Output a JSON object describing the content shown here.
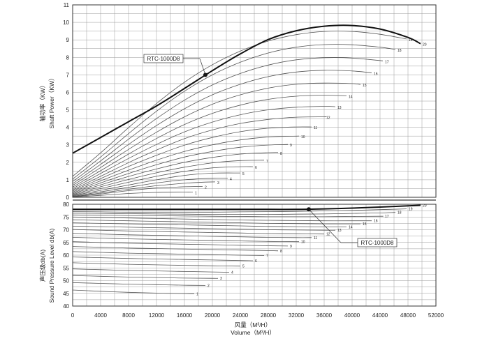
{
  "chart_data": [
    {
      "type": "line",
      "ylabel_cn": "轴功率（KW）",
      "ylabel": "Shaft Power（KW）",
      "ylim": [
        0,
        11
      ],
      "yticks": [
        "0",
        "1",
        "2",
        "3",
        "4",
        "5",
        "6",
        "7",
        "8",
        "9",
        "10",
        "11"
      ],
      "grid": true,
      "highlight": {
        "name": "RTC-1000D8",
        "marker_x": 19000,
        "marker_y": 7.0
      },
      "series": [
        {
          "name": "1",
          "x": [
            0,
            4000,
            8000,
            12000,
            16000,
            17200
          ],
          "y": [
            0.02,
            0.11,
            0.22,
            0.28,
            0.3,
            0.3
          ]
        },
        {
          "name": "2",
          "x": [
            0,
            4000,
            8000,
            12000,
            16000,
            18600
          ],
          "y": [
            0.03,
            0.19,
            0.38,
            0.53,
            0.6,
            0.62
          ]
        },
        {
          "name": "3",
          "x": [
            0,
            4000,
            8000,
            12000,
            16000,
            19000,
            20400
          ],
          "y": [
            0.04,
            0.24,
            0.46,
            0.66,
            0.8,
            0.87,
            0.88
          ]
        },
        {
          "name": "4",
          "x": [
            0,
            4000,
            8000,
            12000,
            16000,
            20000,
            22200
          ],
          "y": [
            0.06,
            0.31,
            0.57,
            0.82,
            1.0,
            1.09,
            1.1
          ]
        },
        {
          "name": "5",
          "x": [
            0,
            4000,
            8000,
            12000,
            16000,
            20000,
            24000
          ],
          "y": [
            0.09,
            0.4,
            0.7,
            1.0,
            1.25,
            1.38,
            1.39
          ]
        },
        {
          "name": "6",
          "x": [
            0,
            4000,
            8000,
            12000,
            16000,
            20000,
            24000,
            25800
          ],
          "y": [
            0.12,
            0.5,
            0.86,
            1.2,
            1.48,
            1.68,
            1.75,
            1.75
          ]
        },
        {
          "name": "7",
          "x": [
            0,
            4000,
            8000,
            12000,
            16000,
            20000,
            24000,
            27400
          ],
          "y": [
            0.16,
            0.6,
            1.02,
            1.4,
            1.72,
            1.97,
            2.1,
            2.12
          ]
        },
        {
          "name": "8",
          "x": [
            0,
            4000,
            8000,
            12000,
            16000,
            20000,
            24000,
            28000,
            29400
          ],
          "y": [
            0.2,
            0.71,
            1.19,
            1.62,
            2.0,
            2.28,
            2.47,
            2.55,
            2.56
          ]
        },
        {
          "name": "9",
          "x": [
            0,
            4000,
            8000,
            12000,
            16000,
            20000,
            24000,
            28000,
            30800
          ],
          "y": [
            0.25,
            0.82,
            1.36,
            1.86,
            2.3,
            2.62,
            2.86,
            2.99,
            3.02
          ]
        },
        {
          "name": "10",
          "x": [
            0,
            4000,
            8000,
            12000,
            16000,
            20000,
            24000,
            28000,
            32400
          ],
          "y": [
            0.3,
            0.94,
            1.55,
            2.12,
            2.62,
            3.0,
            3.28,
            3.45,
            3.5
          ]
        },
        {
          "name": "11",
          "x": [
            0,
            4000,
            8000,
            12000,
            16000,
            20000,
            24000,
            28000,
            32000,
            34200
          ],
          "y": [
            0.36,
            1.07,
            1.76,
            2.4,
            2.98,
            3.42,
            3.75,
            3.95,
            4.02,
            4.02
          ]
        },
        {
          "name": "12",
          "x": [
            0,
            4000,
            8000,
            12000,
            16000,
            20000,
            24000,
            28000,
            32000,
            36000,
            36000
          ],
          "y": [
            0.42,
            1.2,
            1.98,
            2.7,
            3.35,
            3.85,
            4.22,
            4.45,
            4.58,
            4.6,
            4.6
          ]
        },
        {
          "name": "13",
          "x": [
            0,
            4000,
            8000,
            12000,
            16000,
            20000,
            24000,
            28000,
            32000,
            36000,
            37600
          ],
          "y": [
            0.5,
            1.36,
            2.22,
            3.02,
            3.74,
            4.3,
            4.72,
            5.0,
            5.15,
            5.2,
            5.18
          ]
        },
        {
          "name": "14",
          "x": [
            0,
            4000,
            8000,
            12000,
            16000,
            20000,
            24000,
            28000,
            32000,
            36000,
            39200
          ],
          "y": [
            0.58,
            1.52,
            2.47,
            3.36,
            4.16,
            4.8,
            5.27,
            5.6,
            5.78,
            5.84,
            5.8
          ]
        },
        {
          "name": "15",
          "x": [
            0,
            4000,
            8000,
            12000,
            16000,
            20000,
            24000,
            28000,
            32000,
            36000,
            40000,
            41200
          ],
          "y": [
            0.68,
            1.7,
            2.74,
            3.72,
            4.6,
            5.32,
            5.86,
            6.24,
            6.46,
            6.53,
            6.5,
            6.45
          ]
        },
        {
          "name": "16",
          "x": [
            0,
            4000,
            8000,
            12000,
            16000,
            20000,
            24000,
            28000,
            32000,
            36000,
            40000,
            42800
          ],
          "y": [
            0.78,
            1.88,
            3.02,
            4.1,
            5.06,
            5.86,
            6.46,
            6.9,
            7.16,
            7.26,
            7.22,
            7.12
          ]
        },
        {
          "name": "17",
          "x": [
            0,
            4000,
            8000,
            12000,
            16000,
            20000,
            24000,
            28000,
            32000,
            36000,
            40000,
            44400
          ],
          "y": [
            0.9,
            2.08,
            3.32,
            4.5,
            5.55,
            6.42,
            7.08,
            7.56,
            7.86,
            7.98,
            7.96,
            7.8
          ]
        },
        {
          "name": "18",
          "x": [
            0,
            4000,
            8000,
            12000,
            16000,
            20000,
            24000,
            28000,
            32000,
            36000,
            40000,
            44000,
            46200
          ],
          "y": [
            1.04,
            2.3,
            3.64,
            4.92,
            6.06,
            7.0,
            7.72,
            8.25,
            8.58,
            8.73,
            8.72,
            8.58,
            8.45
          ]
        },
        {
          "name": "19",
          "x": [
            0,
            4000,
            8000,
            12000,
            16000,
            20000,
            24000,
            28000,
            32000,
            36000,
            40000,
            44000,
            47800
          ],
          "y": [
            1.2,
            2.54,
            3.98,
            5.36,
            6.58,
            7.58,
            8.36,
            8.93,
            9.3,
            9.48,
            9.48,
            9.32,
            9.05
          ]
        },
        {
          "name": "20",
          "x": [
            0,
            4000,
            8000,
            12000,
            16000,
            20000,
            24000,
            28000,
            32000,
            36000,
            40000,
            44000,
            48000,
            49800
          ],
          "y": [
            2.52,
            3.42,
            4.32,
            5.22,
            6.22,
            7.24,
            8.2,
            9.02,
            9.52,
            9.78,
            9.82,
            9.62,
            9.14,
            8.78
          ]
        }
      ]
    },
    {
      "type": "line",
      "ylabel_cn": "声压级db(A)",
      "ylabel": "Sound Pressure Level db(A)",
      "xlabel_cn": "风量（M³/H）",
      "xlabel": "Volume（M³/H）",
      "xlim": [
        0,
        52000
      ],
      "xticks": [
        "0",
        "4000",
        "8000",
        "12000",
        "16000",
        "20000",
        "24000",
        "28000",
        "32000",
        "36000",
        "40000",
        "44000",
        "48000",
        "52000"
      ],
      "ylim": [
        40,
        80
      ],
      "yticks": [
        "40",
        "45",
        "50",
        "55",
        "60",
        "65",
        "70",
        "75",
        "80"
      ],
      "grid": true,
      "highlight": {
        "name": "RTC-1000D8",
        "marker_x": 33800,
        "marker_y": 78.0
      },
      "series": [
        {
          "name": "1",
          "x": [
            0,
            4000,
            8000,
            12000,
            16000,
            17400
          ],
          "y": [
            46.3,
            45.8,
            45.4,
            45.1,
            44.9,
            44.8
          ]
        },
        {
          "name": "2",
          "x": [
            0,
            4000,
            8000,
            12000,
            16000,
            19000
          ],
          "y": [
            49.2,
            48.9,
            48.6,
            48.4,
            48.2,
            48.1
          ]
        },
        {
          "name": "3",
          "x": [
            0,
            4000,
            8000,
            12000,
            16000,
            20000,
            20800
          ],
          "y": [
            52.0,
            51.7,
            51.4,
            51.2,
            51.0,
            50.9,
            50.9
          ]
        },
        {
          "name": "4",
          "x": [
            0,
            4000,
            8000,
            12000,
            16000,
            20000,
            22400
          ],
          "y": [
            54.6,
            54.3,
            54.0,
            53.8,
            53.6,
            53.4,
            53.3
          ]
        },
        {
          "name": "5",
          "x": [
            0,
            4000,
            8000,
            12000,
            16000,
            20000,
            24000
          ],
          "y": [
            57.0,
            56.7,
            56.4,
            56.2,
            56.0,
            55.8,
            55.7
          ]
        },
        {
          "name": "6",
          "x": [
            0,
            4000,
            8000,
            12000,
            16000,
            20000,
            24000,
            25800
          ],
          "y": [
            59.3,
            59.0,
            58.7,
            58.5,
            58.3,
            58.1,
            57.9,
            57.8
          ]
        },
        {
          "name": "7",
          "x": [
            0,
            4000,
            8000,
            12000,
            16000,
            20000,
            24000,
            27400
          ],
          "y": [
            61.4,
            61.1,
            60.8,
            60.6,
            60.4,
            60.2,
            60.0,
            59.9
          ]
        },
        {
          "name": "8",
          "x": [
            0,
            4000,
            8000,
            12000,
            16000,
            20000,
            24000,
            28000,
            29400
          ],
          "y": [
            63.4,
            63.1,
            62.8,
            62.6,
            62.4,
            62.2,
            62.0,
            61.8,
            61.7
          ]
        },
        {
          "name": "9",
          "x": [
            0,
            4000,
            8000,
            12000,
            16000,
            20000,
            24000,
            28000,
            30800
          ],
          "y": [
            65.3,
            65.0,
            64.7,
            64.5,
            64.3,
            64.1,
            63.9,
            63.7,
            63.6
          ]
        },
        {
          "name": "10",
          "x": [
            0,
            4000,
            8000,
            12000,
            16000,
            20000,
            24000,
            28000,
            32400
          ],
          "y": [
            67.0,
            66.7,
            66.4,
            66.2,
            66.0,
            65.8,
            65.6,
            65.4,
            65.3
          ]
        },
        {
          "name": "11",
          "x": [
            0,
            4000,
            8000,
            12000,
            16000,
            20000,
            24000,
            28000,
            32000,
            34200
          ],
          "y": [
            68.6,
            68.3,
            68.0,
            67.8,
            67.6,
            67.4,
            67.2,
            67.0,
            66.9,
            66.9
          ]
        },
        {
          "name": "12",
          "x": [
            0,
            4000,
            8000,
            12000,
            16000,
            20000,
            24000,
            28000,
            32000,
            36000
          ],
          "y": [
            70.1,
            69.8,
            69.5,
            69.3,
            69.1,
            68.9,
            68.7,
            68.5,
            68.4,
            68.3
          ]
        },
        {
          "name": "13",
          "x": [
            0,
            4000,
            8000,
            12000,
            16000,
            20000,
            24000,
            28000,
            32000,
            36000,
            37600
          ],
          "y": [
            71.4,
            71.2,
            71.0,
            70.8,
            70.6,
            70.4,
            70.2,
            70.0,
            69.9,
            69.8,
            69.8
          ]
        },
        {
          "name": "14",
          "x": [
            0,
            4000,
            8000,
            12000,
            16000,
            20000,
            24000,
            28000,
            32000,
            36000,
            39200
          ],
          "y": [
            72.7,
            72.5,
            72.3,
            72.1,
            71.9,
            71.7,
            71.5,
            71.3,
            71.2,
            71.1,
            71.1
          ]
        },
        {
          "name": "15",
          "x": [
            0,
            4000,
            8000,
            12000,
            16000,
            20000,
            24000,
            28000,
            32000,
            36000,
            40000,
            41200
          ],
          "y": [
            73.9,
            73.7,
            73.5,
            73.3,
            73.1,
            72.9,
            72.7,
            72.5,
            72.4,
            72.3,
            72.3,
            72.3
          ]
        },
        {
          "name": "16",
          "x": [
            0,
            4000,
            8000,
            12000,
            16000,
            20000,
            24000,
            28000,
            32000,
            36000,
            40000,
            42800
          ],
          "y": [
            75.0,
            74.8,
            74.6,
            74.4,
            74.2,
            74.0,
            73.8,
            73.7,
            73.6,
            73.5,
            73.5,
            73.5
          ]
        },
        {
          "name": "17",
          "x": [
            0,
            4000,
            8000,
            12000,
            16000,
            20000,
            24000,
            28000,
            32000,
            36000,
            40000,
            44000,
            44400
          ],
          "y": [
            75.8,
            75.7,
            75.6,
            75.5,
            75.4,
            75.3,
            75.2,
            75.1,
            75.1,
            75.1,
            75.2,
            75.3,
            75.3
          ]
        },
        {
          "name": "18",
          "x": [
            0,
            4000,
            8000,
            12000,
            16000,
            20000,
            24000,
            28000,
            32000,
            36000,
            40000,
            44000,
            46200
          ],
          "y": [
            76.5,
            76.4,
            76.3,
            76.2,
            76.1,
            76.0,
            76.0,
            76.0,
            76.1,
            76.2,
            76.4,
            76.6,
            76.8
          ]
        },
        {
          "name": "19",
          "x": [
            0,
            4000,
            8000,
            12000,
            16000,
            20000,
            24000,
            28000,
            32000,
            36000,
            40000,
            44000,
            47800
          ],
          "y": [
            77.1,
            77.0,
            76.9,
            76.9,
            76.9,
            76.9,
            77.0,
            77.1,
            77.2,
            77.4,
            77.6,
            77.9,
            78.2
          ]
        },
        {
          "name": "20",
          "x": [
            0,
            4000,
            8000,
            12000,
            16000,
            20000,
            24000,
            28000,
            32000,
            36000,
            40000,
            44000,
            48000,
            49800
          ],
          "y": [
            78.0,
            78.0,
            78.0,
            78.0,
            78.0,
            78.0,
            78.0,
            78.0,
            78.0,
            78.2,
            78.5,
            78.9,
            79.4,
            79.6
          ]
        }
      ]
    }
  ]
}
